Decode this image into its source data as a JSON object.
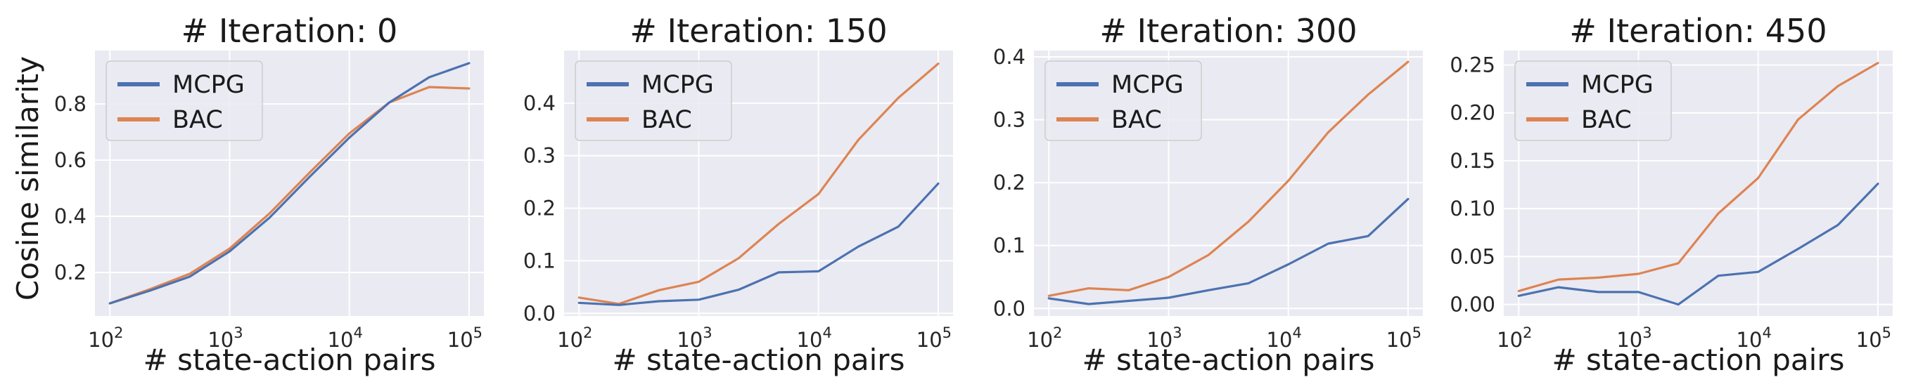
{
  "figure": {
    "ylabel": "Cosine similarity",
    "xlabel": "# state-action pairs",
    "legend": [
      "MCPG",
      "BAC"
    ],
    "colors": {
      "MCPG": "#4c72b0",
      "BAC": "#dd8452",
      "background": "#eaeaf2",
      "grid": "#ffffff"
    }
  },
  "chart_data": [
    {
      "type": "line",
      "title": "# Iteration: 0",
      "xlabel": "# state-action pairs",
      "ylabel": "Cosine similarity",
      "xscale": "log",
      "x": [
        100,
        215,
        464,
        1000,
        2154,
        4642,
        10000,
        21544,
        46416,
        100000
      ],
      "xlim": [
        75,
        133000
      ],
      "ylim": [
        0.045,
        0.99
      ],
      "yticks": [
        0.2,
        0.4,
        0.6,
        0.8
      ],
      "yticklabels": [
        "0.2",
        "0.4",
        "0.6",
        "0.8"
      ],
      "xticklabels": [
        [
          "10",
          "2"
        ],
        [
          "10",
          "3"
        ],
        [
          "10",
          "4"
        ],
        [
          "10",
          "5"
        ]
      ],
      "series": [
        {
          "name": "MCPG",
          "values": [
            0.09,
            0.135,
            0.185,
            0.275,
            0.395,
            0.54,
            0.68,
            0.805,
            0.895,
            0.945
          ]
        },
        {
          "name": "BAC",
          "values": [
            0.09,
            0.14,
            0.195,
            0.285,
            0.41,
            0.555,
            0.695,
            0.805,
            0.86,
            0.855
          ]
        }
      ],
      "legend_position": "upper-left",
      "grid": true
    },
    {
      "type": "line",
      "title": "# Iteration: 150",
      "xlabel": "# state-action pairs",
      "ylabel": "",
      "xscale": "log",
      "x": [
        100,
        215,
        464,
        1000,
        2154,
        4642,
        10000,
        21544,
        46416,
        100000
      ],
      "xlim": [
        75,
        133000
      ],
      "ylim": [
        -0.005,
        0.5
      ],
      "yticks": [
        0.0,
        0.1,
        0.2,
        0.3,
        0.4
      ],
      "yticklabels": [
        "0.0",
        "0.1",
        "0.2",
        "0.3",
        "0.4"
      ],
      "xticklabels": [
        [
          "10",
          "2"
        ],
        [
          "10",
          "3"
        ],
        [
          "10",
          "4"
        ],
        [
          "10",
          "5"
        ]
      ],
      "series": [
        {
          "name": "MCPG",
          "values": [
            0.02,
            0.016,
            0.023,
            0.026,
            0.045,
            0.078,
            0.08,
            0.127,
            0.165,
            0.247
          ]
        },
        {
          "name": "BAC",
          "values": [
            0.03,
            0.018,
            0.044,
            0.06,
            0.105,
            0.17,
            0.227,
            0.33,
            0.41,
            0.475
          ]
        }
      ],
      "legend_position": "upper-left",
      "grid": true
    },
    {
      "type": "line",
      "title": "# Iteration: 300",
      "xlabel": "# state-action pairs",
      "ylabel": "",
      "xscale": "log",
      "x": [
        100,
        215,
        464,
        1000,
        2154,
        4642,
        10000,
        21544,
        46416,
        100000
      ],
      "xlim": [
        75,
        133000
      ],
      "ylim": [
        -0.012,
        0.41
      ],
      "yticks": [
        0.0,
        0.1,
        0.2,
        0.3,
        0.4
      ],
      "yticklabels": [
        "0.0",
        "0.1",
        "0.2",
        "0.3",
        "0.4"
      ],
      "xticklabels": [
        [
          "10",
          "2"
        ],
        [
          "10",
          "3"
        ],
        [
          "10",
          "4"
        ],
        [
          "10",
          "5"
        ]
      ],
      "series": [
        {
          "name": "MCPG",
          "values": [
            0.016,
            0.007,
            0.012,
            0.017,
            0.029,
            0.04,
            0.07,
            0.103,
            0.115,
            0.174
          ]
        },
        {
          "name": "BAC",
          "values": [
            0.02,
            0.032,
            0.029,
            0.05,
            0.085,
            0.138,
            0.203,
            0.28,
            0.34,
            0.392
          ]
        }
      ],
      "legend_position": "upper-left",
      "grid": true
    },
    {
      "type": "line",
      "title": "# Iteration: 450",
      "xlabel": "# state-action pairs",
      "ylabel": "",
      "xscale": "log",
      "x": [
        100,
        215,
        464,
        1000,
        2154,
        4642,
        10000,
        21544,
        46416,
        100000
      ],
      "xlim": [
        75,
        133000
      ],
      "ylim": [
        -0.012,
        0.265
      ],
      "yticks": [
        0.0,
        0.05,
        0.1,
        0.15,
        0.2,
        0.25
      ],
      "yticklabels": [
        "0.00",
        "0.05",
        "0.10",
        "0.15",
        "0.20",
        "0.25"
      ],
      "xticklabels": [
        [
          "10",
          "2"
        ],
        [
          "10",
          "3"
        ],
        [
          "10",
          "4"
        ],
        [
          "10",
          "5"
        ]
      ],
      "series": [
        {
          "name": "MCPG",
          "values": [
            0.009,
            0.018,
            0.013,
            0.013,
            0.0,
            0.03,
            0.034,
            0.058,
            0.083,
            0.126
          ]
        },
        {
          "name": "BAC",
          "values": [
            0.014,
            0.026,
            0.028,
            0.032,
            0.043,
            0.095,
            0.132,
            0.193,
            0.228,
            0.252
          ]
        }
      ],
      "legend_position": "upper-left",
      "grid": true
    }
  ]
}
